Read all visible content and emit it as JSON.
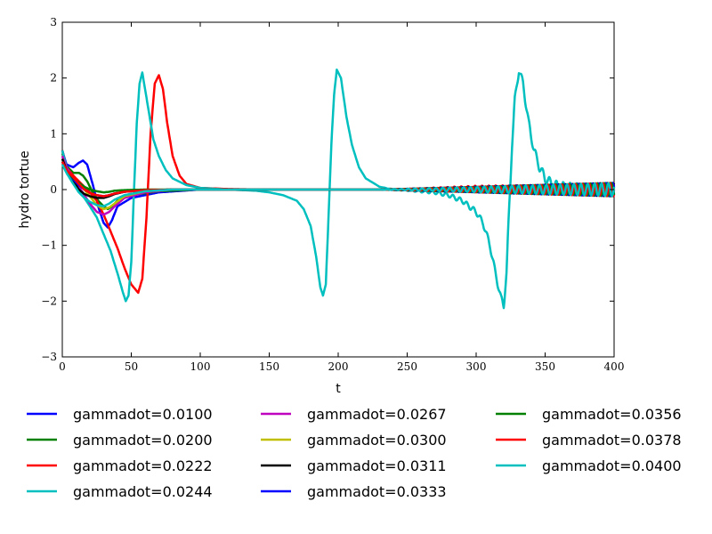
{
  "chart_data": {
    "type": "line",
    "xlabel": "t",
    "ylabel": "hydro tortue",
    "xlim": [
      0,
      400
    ],
    "ylim": [
      -3,
      3
    ],
    "xticks": [
      0,
      50,
      100,
      150,
      200,
      250,
      300,
      350,
      400
    ],
    "yticks": [
      -3,
      -2,
      -1,
      0,
      1,
      2,
      3
    ],
    "xtick_labels": [
      "0",
      "50",
      "100",
      "150",
      "200",
      "250",
      "300",
      "350",
      "400"
    ],
    "ytick_labels": [
      "−3",
      "−2",
      "−1",
      "0",
      "1",
      "2",
      "3"
    ],
    "grid": false,
    "legend_position": "below-plot",
    "series": [
      {
        "name": "gammadot=0.0100",
        "color": "#0000ff",
        "x": [
          0,
          3,
          8,
          12,
          15,
          18,
          22,
          26,
          30,
          33,
          36,
          40,
          50,
          70,
          100,
          150,
          200,
          250,
          300,
          350,
          400
        ],
        "y": [
          0.7,
          0.45,
          0.4,
          0.48,
          0.52,
          0.45,
          0.1,
          -0.3,
          -0.6,
          -0.68,
          -0.55,
          -0.3,
          -0.15,
          -0.05,
          0.0,
          0.0,
          0.0,
          0.0,
          0.0,
          0.0,
          0.0
        ]
      },
      {
        "name": "gammadot=0.0200",
        "color": "#008000",
        "x": [
          0,
          3,
          8,
          12,
          15,
          18,
          22,
          26,
          30,
          33,
          36,
          40,
          50,
          70,
          100,
          150,
          200,
          250,
          300,
          350,
          400
        ],
        "y": [
          0.65,
          0.42,
          0.3,
          0.3,
          0.25,
          0.15,
          -0.05,
          -0.2,
          -0.3,
          -0.35,
          -0.3,
          -0.2,
          -0.1,
          -0.03,
          0.0,
          0.0,
          0.0,
          0.0,
          0.0,
          0.0,
          0.0
        ]
      },
      {
        "name": "gammadot=0.0222",
        "color": "#ff0000",
        "x": [
          0,
          3,
          8,
          12,
          16,
          20,
          25,
          30,
          35,
          40,
          45,
          50,
          55,
          58,
          61,
          64,
          67,
          70,
          73,
          76,
          80,
          85,
          90,
          100,
          120,
          150,
          200,
          250,
          300,
          350,
          400
        ],
        "y": [
          0.7,
          0.4,
          0.25,
          0.15,
          0.05,
          -0.05,
          -0.2,
          -0.45,
          -0.75,
          -1.05,
          -1.4,
          -1.7,
          -1.85,
          -1.6,
          -0.5,
          1.0,
          1.9,
          2.05,
          1.8,
          1.2,
          0.6,
          0.25,
          0.1,
          0.03,
          0.01,
          0.0,
          0.0,
          0.0,
          0.02,
          0.0,
          0.0
        ]
      },
      {
        "name": "gammadot=0.0244",
        "color": "#00bfbf",
        "x": [
          0,
          3,
          8,
          12,
          16,
          20,
          25,
          30,
          35,
          40,
          44,
          46,
          48,
          50,
          52,
          54,
          56,
          58,
          62,
          66,
          70,
          75,
          80,
          90,
          100,
          120,
          140,
          150,
          160,
          170,
          175,
          180,
          184,
          187,
          189,
          191,
          193,
          195,
          197,
          199,
          202,
          206,
          210,
          215,
          220,
          230,
          240,
          250,
          260,
          270,
          280,
          290,
          300,
          305,
          310,
          314,
          318,
          320,
          322,
          324,
          326,
          328,
          331,
          334,
          338,
          342,
          346,
          350,
          355,
          360,
          370,
          380,
          390,
          400
        ],
        "y": [
          0.7,
          0.4,
          0.15,
          0.0,
          -0.15,
          -0.3,
          -0.5,
          -0.8,
          -1.1,
          -1.5,
          -1.85,
          -2.0,
          -1.9,
          -1.3,
          0.0,
          1.2,
          1.9,
          2.1,
          1.5,
          0.9,
          0.6,
          0.35,
          0.2,
          0.08,
          0.03,
          0.0,
          -0.02,
          -0.05,
          -0.1,
          -0.2,
          -0.35,
          -0.65,
          -1.2,
          -1.75,
          -1.9,
          -1.7,
          -0.5,
          0.8,
          1.7,
          2.15,
          2.0,
          1.3,
          0.8,
          0.4,
          0.2,
          0.05,
          0.0,
          -0.01,
          -0.03,
          -0.05,
          -0.1,
          -0.2,
          -0.4,
          -0.6,
          -1.0,
          -1.5,
          -1.95,
          -2.08,
          -1.5,
          -0.3,
          0.8,
          1.6,
          2.15,
          1.9,
          1.2,
          0.7,
          0.4,
          0.2,
          0.1,
          0.05,
          0.02,
          0.0,
          0.0,
          0.0
        ]
      },
      {
        "name": "gammadot=0.0267",
        "color": "#bf00bf",
        "x": [
          0,
          3,
          8,
          12,
          16,
          20,
          25,
          30,
          34,
          38,
          45,
          60,
          80,
          100,
          150,
          200,
          250,
          300,
          350,
          400
        ],
        "y": [
          0.6,
          0.4,
          0.2,
          0.05,
          -0.1,
          -0.25,
          -0.4,
          -0.45,
          -0.4,
          -0.3,
          -0.15,
          -0.05,
          0.0,
          0.0,
          0.0,
          0.0,
          0.0,
          0.0,
          0.0,
          0.0
        ]
      },
      {
        "name": "gammadot=0.0300",
        "color": "#bfbf00",
        "x": [
          0,
          3,
          8,
          12,
          16,
          20,
          25,
          30,
          34,
          38,
          45,
          60,
          80,
          100,
          150,
          200,
          250,
          300,
          350,
          400
        ],
        "y": [
          0.55,
          0.35,
          0.2,
          0.1,
          0.0,
          -0.12,
          -0.28,
          -0.35,
          -0.32,
          -0.25,
          -0.12,
          -0.03,
          0.0,
          0.0,
          0.0,
          0.0,
          0.0,
          0.0,
          0.0,
          0.0
        ]
      },
      {
        "name": "gammadot=0.0311",
        "color": "#000000",
        "x": [
          0,
          3,
          8,
          12,
          16,
          20,
          25,
          30,
          34,
          38,
          45,
          60,
          80,
          100,
          150,
          200,
          250,
          300,
          350,
          400
        ],
        "y": [
          0.55,
          0.35,
          0.15,
          0.0,
          -0.08,
          -0.12,
          -0.15,
          -0.15,
          -0.12,
          -0.08,
          -0.04,
          -0.01,
          0.0,
          0.0,
          0.0,
          0.0,
          0.0,
          0.0,
          0.0,
          0.0
        ]
      },
      {
        "name": "gammadot=0.0333",
        "color": "#0000ff",
        "x": [
          0,
          3,
          8,
          12,
          16,
          20,
          25,
          30,
          34,
          38,
          45,
          60,
          80,
          100,
          150,
          200,
          250,
          300,
          350,
          400
        ],
        "y": [
          0.5,
          0.35,
          0.18,
          0.08,
          0.0,
          -0.06,
          -0.1,
          -0.12,
          -0.1,
          -0.07,
          -0.04,
          -0.01,
          0.0,
          0.0,
          0.0,
          0.0,
          0.0,
          0.0,
          0.0,
          0.0
        ]
      },
      {
        "name": "gammadot=0.0356",
        "color": "#008000",
        "x": [
          0,
          3,
          8,
          12,
          16,
          20,
          25,
          30,
          34,
          38,
          45,
          60,
          80,
          100,
          150,
          200,
          250,
          300,
          350,
          400
        ],
        "y": [
          0.5,
          0.35,
          0.2,
          0.12,
          0.05,
          0.0,
          -0.03,
          -0.05,
          -0.04,
          -0.02,
          -0.01,
          0.0,
          0.0,
          0.0,
          0.0,
          0.0,
          0.0,
          0.0,
          0.0,
          0.0
        ]
      },
      {
        "name": "gammadot=0.0378",
        "color": "#ff0000",
        "x": [
          0,
          3,
          8,
          12,
          16,
          20,
          25,
          30,
          34,
          38,
          45,
          60,
          80,
          100,
          150,
          200,
          250,
          300,
          350,
          400
        ],
        "y": [
          0.5,
          0.35,
          0.22,
          0.1,
          0.0,
          -0.06,
          -0.1,
          -0.12,
          -0.1,
          -0.07,
          -0.04,
          -0.01,
          0.0,
          0.0,
          0.0,
          0.0,
          0.0,
          0.0,
          0.0,
          0.0
        ]
      },
      {
        "name": "gammadot=0.0400",
        "color": "#00bfbf",
        "x": [
          0,
          3,
          8,
          12,
          16,
          20,
          25,
          30,
          34,
          38,
          45,
          60,
          80,
          100,
          150,
          200,
          250,
          300,
          350,
          400
        ],
        "y": [
          0.45,
          0.3,
          0.1,
          -0.05,
          -0.15,
          -0.22,
          -0.28,
          -0.3,
          -0.25,
          -0.18,
          -0.1,
          -0.03,
          0.0,
          0.0,
          0.0,
          0.0,
          0.0,
          0.0,
          0.0,
          0.0
        ]
      }
    ]
  },
  "noise": {
    "start": 230,
    "end": 400,
    "amplitude": 0.12,
    "period": 5
  }
}
